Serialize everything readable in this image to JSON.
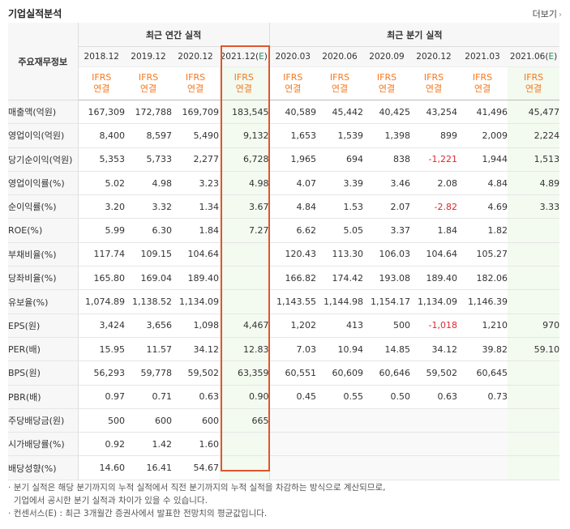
{
  "title": "기업실적분석",
  "more_label": "더보기",
  "header": {
    "row_label": "주요재무정보",
    "annual_group": "최근 연간 실적",
    "quarter_group": "최근 분기 실적",
    "periods": [
      "2018.12",
      "2019.12",
      "2020.12",
      "2021.12(E)",
      "2020.03",
      "2020.06",
      "2020.09",
      "2020.12",
      "2021.03",
      "2021.06(E)"
    ],
    "ifrs": "IFRS",
    "consol": "연결"
  },
  "rows": [
    {
      "label": "매출액(억원)",
      "values": [
        "167,309",
        "172,788",
        "169,709",
        "183,545",
        "40,589",
        "45,442",
        "40,425",
        "43,254",
        "41,496",
        "45,477"
      ]
    },
    {
      "label": "영업이익(억원)",
      "values": [
        "8,400",
        "8,597",
        "5,490",
        "9,132",
        "1,653",
        "1,539",
        "1,398",
        "899",
        "2,009",
        "2,224"
      ]
    },
    {
      "label": "당기순이익(억원)",
      "values": [
        "5,353",
        "5,733",
        "2,277",
        "6,728",
        "1,965",
        "694",
        "838",
        "-1,221",
        "1,944",
        "1,513"
      ]
    },
    {
      "label": "영업이익률(%)",
      "values": [
        "5.02",
        "4.98",
        "3.23",
        "4.98",
        "4.07",
        "3.39",
        "3.46",
        "2.08",
        "4.84",
        "4.89"
      ]
    },
    {
      "label": "순이익률(%)",
      "values": [
        "3.20",
        "3.32",
        "1.34",
        "3.67",
        "4.84",
        "1.53",
        "2.07",
        "-2.82",
        "4.69",
        "3.33"
      ]
    },
    {
      "label": "ROE(%)",
      "values": [
        "5.99",
        "6.30",
        "1.84",
        "7.27",
        "6.62",
        "5.05",
        "3.37",
        "1.84",
        "1.82",
        ""
      ]
    },
    {
      "label": "부채비율(%)",
      "values": [
        "117.74",
        "109.15",
        "104.64",
        "",
        "120.43",
        "113.30",
        "106.03",
        "104.64",
        "105.27",
        ""
      ]
    },
    {
      "label": "당좌비율(%)",
      "values": [
        "165.80",
        "169.04",
        "189.40",
        "",
        "166.82",
        "174.42",
        "193.08",
        "189.40",
        "182.06",
        ""
      ]
    },
    {
      "label": "유보율(%)",
      "values": [
        "1,074.89",
        "1,138.52",
        "1,134.09",
        "",
        "1,143.55",
        "1,144.98",
        "1,154.17",
        "1,134.09",
        "1,146.39",
        ""
      ]
    },
    {
      "label": "EPS(원)",
      "values": [
        "3,424",
        "3,656",
        "1,098",
        "4,467",
        "1,202",
        "413",
        "500",
        "-1,018",
        "1,210",
        "970"
      ]
    },
    {
      "label": "PER(배)",
      "values": [
        "15.95",
        "11.57",
        "34.12",
        "12.83",
        "7.03",
        "10.94",
        "14.85",
        "34.12",
        "39.82",
        "59.10"
      ]
    },
    {
      "label": "BPS(원)",
      "values": [
        "56,293",
        "59,778",
        "59,502",
        "63,359",
        "60,551",
        "60,609",
        "60,646",
        "59,502",
        "60,645",
        ""
      ]
    },
    {
      "label": "PBR(배)",
      "values": [
        "0.97",
        "0.71",
        "0.63",
        "0.90",
        "0.45",
        "0.55",
        "0.50",
        "0.63",
        "0.73",
        ""
      ]
    },
    {
      "label": "주당배당금(원)",
      "values": [
        "500",
        "600",
        "600",
        "665",
        "",
        "",
        "",
        "",
        "",
        ""
      ]
    },
    {
      "label": "시가배당률(%)",
      "values": [
        "0.92",
        "1.42",
        "1.60",
        "",
        "",
        "",
        "",
        "",
        "",
        ""
      ]
    },
    {
      "label": "배당성향(%)",
      "values": [
        "14.60",
        "16.41",
        "54.67",
        "",
        "",
        "",
        "",
        "",
        "",
        ""
      ]
    }
  ],
  "notes": [
    "분기 실적은 해당 분기까지의 누적 실적에서 직전 분기까지의 누적 실적을 차감하는 방식으로 계산되므로,",
    "기업에서 공시한 분기 실적과 차이가 있을 수 있습니다.",
    "컨센서스(E) : 최근 3개월간 증권사에서 발표한 전망치의 평균값입니다."
  ],
  "colors": {
    "ifrs": "#f47920",
    "negative": "#e0272b",
    "highlight_border": "#e0562b",
    "estimate_bg": "#f3faf0"
  }
}
